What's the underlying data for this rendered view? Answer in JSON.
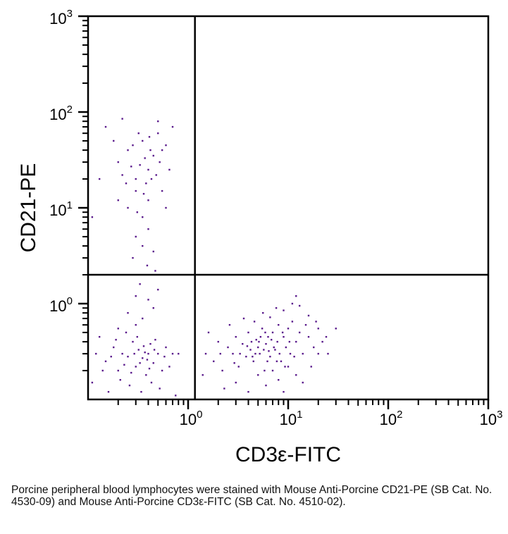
{
  "chart_data": {
    "type": "scatter",
    "title": "",
    "xlabel": "CD3ε-FITC",
    "ylabel": "CD21-PE",
    "xscale": "log",
    "yscale": "log",
    "xlim": [
      0.1,
      1000
    ],
    "ylim": [
      0.1,
      1000
    ],
    "x_ticks": [
      {
        "base": "10",
        "exp": "0",
        "value": 1
      },
      {
        "base": "10",
        "exp": "1",
        "value": 10
      },
      {
        "base": "10",
        "exp": "2",
        "value": 100
      },
      {
        "base": "10",
        "exp": "3",
        "value": 1000
      }
    ],
    "y_ticks": [
      {
        "base": "10",
        "exp": "0",
        "value": 1
      },
      {
        "base": "10",
        "exp": "1",
        "value": 10
      },
      {
        "base": "10",
        "exp": "2",
        "value": 100
      },
      {
        "base": "10",
        "exp": "3",
        "value": 1000
      }
    ],
    "quadrant_gates": {
      "x": 1.17,
      "y": 2.0
    },
    "point_color": "#5a1a8c",
    "grid": false,
    "points": [
      [
        0.2,
        30
      ],
      [
        0.25,
        40
      ],
      [
        0.3,
        20
      ],
      [
        0.35,
        50
      ],
      [
        0.4,
        25
      ],
      [
        0.45,
        35
      ],
      [
        0.5,
        60
      ],
      [
        0.3,
        15
      ],
      [
        0.25,
        10
      ],
      [
        0.35,
        8
      ],
      [
        0.4,
        12
      ],
      [
        0.22,
        22
      ],
      [
        0.28,
        45
      ],
      [
        0.33,
        28
      ],
      [
        0.38,
        18
      ],
      [
        0.42,
        40
      ],
      [
        0.48,
        22
      ],
      [
        0.52,
        30
      ],
      [
        0.55,
        15
      ],
      [
        0.6,
        45
      ],
      [
        0.3,
        5
      ],
      [
        0.35,
        4
      ],
      [
        0.28,
        3
      ],
      [
        0.4,
        6
      ],
      [
        0.45,
        3.5
      ],
      [
        0.2,
        12
      ],
      [
        0.18,
        50
      ],
      [
        0.15,
        70
      ],
      [
        0.22,
        85
      ],
      [
        0.5,
        80
      ],
      [
        0.7,
        70
      ],
      [
        0.65,
        25
      ],
      [
        0.32,
        60
      ],
      [
        0.37,
        33
      ],
      [
        0.43,
        20
      ],
      [
        0.27,
        27
      ],
      [
        0.31,
        9
      ],
      [
        0.39,
        2.5
      ],
      [
        0.47,
        2.2
      ],
      [
        0.24,
        18
      ],
      [
        0.13,
        20
      ],
      [
        0.11,
        8
      ],
      [
        0.55,
        40
      ],
      [
        0.6,
        10
      ],
      [
        0.33,
        1.6
      ],
      [
        0.3,
        1.2
      ],
      [
        0.4,
        1.1
      ],
      [
        0.5,
        1.4
      ],
      [
        0.36,
        14
      ],
      [
        0.41,
        55
      ],
      [
        0.12,
        0.3
      ],
      [
        0.15,
        0.25
      ],
      [
        0.18,
        0.35
      ],
      [
        0.2,
        0.2
      ],
      [
        0.22,
        0.3
      ],
      [
        0.25,
        0.28
      ],
      [
        0.28,
        0.4
      ],
      [
        0.3,
        0.22
      ],
      [
        0.32,
        0.33
      ],
      [
        0.35,
        0.27
      ],
      [
        0.38,
        0.18
      ],
      [
        0.4,
        0.3
      ],
      [
        0.42,
        0.38
      ],
      [
        0.45,
        0.24
      ],
      [
        0.5,
        0.3
      ],
      [
        0.55,
        0.2
      ],
      [
        0.6,
        0.35
      ],
      [
        0.11,
        0.15
      ],
      [
        0.13,
        0.45
      ],
      [
        0.16,
        0.12
      ],
      [
        0.19,
        0.42
      ],
      [
        0.21,
        0.16
      ],
      [
        0.24,
        0.5
      ],
      [
        0.26,
        0.14
      ],
      [
        0.29,
        0.3
      ],
      [
        0.31,
        0.45
      ],
      [
        0.34,
        0.12
      ],
      [
        0.36,
        0.36
      ],
      [
        0.39,
        0.26
      ],
      [
        0.43,
        0.15
      ],
      [
        0.47,
        0.42
      ],
      [
        0.52,
        0.13
      ],
      [
        0.58,
        0.28
      ],
      [
        0.65,
        0.22
      ],
      [
        0.7,
        0.3
      ],
      [
        0.75,
        0.11
      ],
      [
        0.14,
        0.2
      ],
      [
        0.17,
        0.28
      ],
      [
        0.23,
        0.23
      ],
      [
        0.27,
        0.19
      ],
      [
        0.33,
        0.24
      ],
      [
        0.37,
        0.31
      ],
      [
        0.41,
        0.21
      ],
      [
        0.46,
        0.33
      ],
      [
        0.3,
        0.6
      ],
      [
        0.35,
        0.7
      ],
      [
        0.25,
        0.8
      ],
      [
        0.45,
        0.9
      ],
      [
        0.2,
        0.55
      ],
      [
        0.8,
        0.3
      ],
      [
        1.5,
        0.3
      ],
      [
        1.8,
        0.25
      ],
      [
        2,
        0.4
      ],
      [
        2.2,
        0.2
      ],
      [
        2.5,
        0.35
      ],
      [
        2.8,
        0.3
      ],
      [
        3,
        0.45
      ],
      [
        3.2,
        0.22
      ],
      [
        3.5,
        0.38
      ],
      [
        3.8,
        0.28
      ],
      [
        4,
        0.5
      ],
      [
        4.2,
        0.33
      ],
      [
        4.5,
        0.25
      ],
      [
        4.8,
        0.42
      ],
      [
        5,
        0.35
      ],
      [
        5.2,
        0.3
      ],
      [
        5.5,
        0.55
      ],
      [
        5.8,
        0.2
      ],
      [
        6,
        0.38
      ],
      [
        6.3,
        0.45
      ],
      [
        6.6,
        0.28
      ],
      [
        7,
        0.5
      ],
      [
        7.4,
        0.33
      ],
      [
        7.8,
        0.4
      ],
      [
        8,
        0.6
      ],
      [
        8.5,
        0.25
      ],
      [
        9,
        0.45
      ],
      [
        9.5,
        0.35
      ],
      [
        10,
        0.55
      ],
      [
        10.5,
        0.3
      ],
      [
        11,
        0.65
      ],
      [
        12,
        0.4
      ],
      [
        13,
        0.5
      ],
      [
        14,
        0.3
      ],
      [
        15,
        0.6
      ],
      [
        16,
        0.45
      ],
      [
        18,
        0.35
      ],
      [
        20,
        0.55
      ],
      [
        22,
        0.4
      ],
      [
        25,
        0.3
      ],
      [
        30,
        0.55
      ],
      [
        3,
        0.15
      ],
      [
        4,
        0.12
      ],
      [
        5,
        0.18
      ],
      [
        6,
        0.14
      ],
      [
        7,
        0.2
      ],
      [
        8,
        0.16
      ],
      [
        9,
        0.12
      ],
      [
        10,
        0.22
      ],
      [
        12,
        0.18
      ],
      [
        2.6,
        0.6
      ],
      [
        3.6,
        0.7
      ],
      [
        4.6,
        0.65
      ],
      [
        5.6,
        0.8
      ],
      [
        6.6,
        0.72
      ],
      [
        7.6,
        0.9
      ],
      [
        9,
        0.85
      ],
      [
        11,
        1.0
      ],
      [
        13,
        0.95
      ],
      [
        12,
        1.2
      ],
      [
        16,
        0.75
      ],
      [
        1.6,
        0.5
      ],
      [
        1.4,
        0.18
      ],
      [
        2.3,
        0.13
      ],
      [
        3.3,
        0.3
      ],
      [
        4.3,
        0.4
      ],
      [
        5.3,
        0.45
      ],
      [
        6.2,
        0.25
      ],
      [
        7.2,
        0.35
      ],
      [
        8.2,
        0.3
      ],
      [
        9.3,
        0.22
      ],
      [
        10.3,
        0.4
      ],
      [
        11.5,
        0.28
      ],
      [
        4.7,
        0.3
      ],
      [
        5.1,
        0.4
      ],
      [
        5.7,
        0.33
      ],
      [
        6.8,
        0.42
      ],
      [
        3.9,
        0.36
      ],
      [
        4.4,
        0.28
      ],
      [
        5.9,
        0.5
      ],
      [
        6.4,
        0.32
      ],
      [
        7.7,
        0.25
      ],
      [
        8.8,
        0.5
      ],
      [
        2.1,
        0.3
      ],
      [
        2.9,
        0.24
      ],
      [
        17,
        0.22
      ],
      [
        20,
        0.3
      ],
      [
        24,
        0.45
      ],
      [
        14,
        0.15
      ],
      [
        19,
        0.65
      ]
    ]
  },
  "caption": "Porcine peripheral blood lymphocytes were stained with Mouse Anti-Porcine CD21-PE (SB Cat. No. 4530-09) and Mouse Anti-Porcine CD3ε-FITC (SB Cat. No. 4510-02)."
}
